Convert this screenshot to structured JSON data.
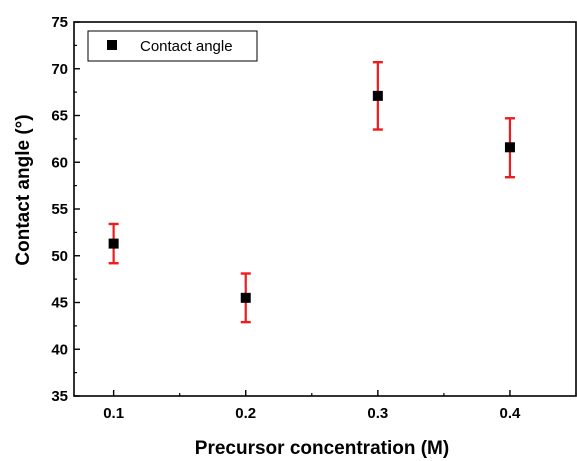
{
  "chart_data": {
    "type": "scatter",
    "xlabel": "Precursor concentration (M)",
    "ylabel": "Contact angle  (°)",
    "xlim": [
      0.07,
      0.45
    ],
    "ylim": [
      35,
      75
    ],
    "xticks": [
      0.1,
      0.2,
      0.3,
      0.4
    ],
    "xtick_labels": [
      "0.1",
      "0.2",
      "0.3",
      "0.4"
    ],
    "yticks": [
      35,
      40,
      45,
      50,
      55,
      60,
      65,
      70,
      75
    ],
    "ytick_labels": [
      "35",
      "40",
      "45",
      "50",
      "55",
      "60",
      "65",
      "70",
      "75"
    ],
    "grid": false,
    "legend_position": "top-left",
    "series": [
      {
        "name": "Contact angle",
        "marker": "square",
        "color": "#000000",
        "error_color": "#ee1c1c",
        "x": [
          0.1,
          0.2,
          0.3,
          0.4
        ],
        "y": [
          51.3,
          45.5,
          67.1,
          61.6
        ],
        "error_low": [
          49.2,
          42.9,
          63.5,
          58.4
        ],
        "error_high": [
          53.4,
          48.1,
          70.7,
          64.7
        ]
      }
    ]
  }
}
